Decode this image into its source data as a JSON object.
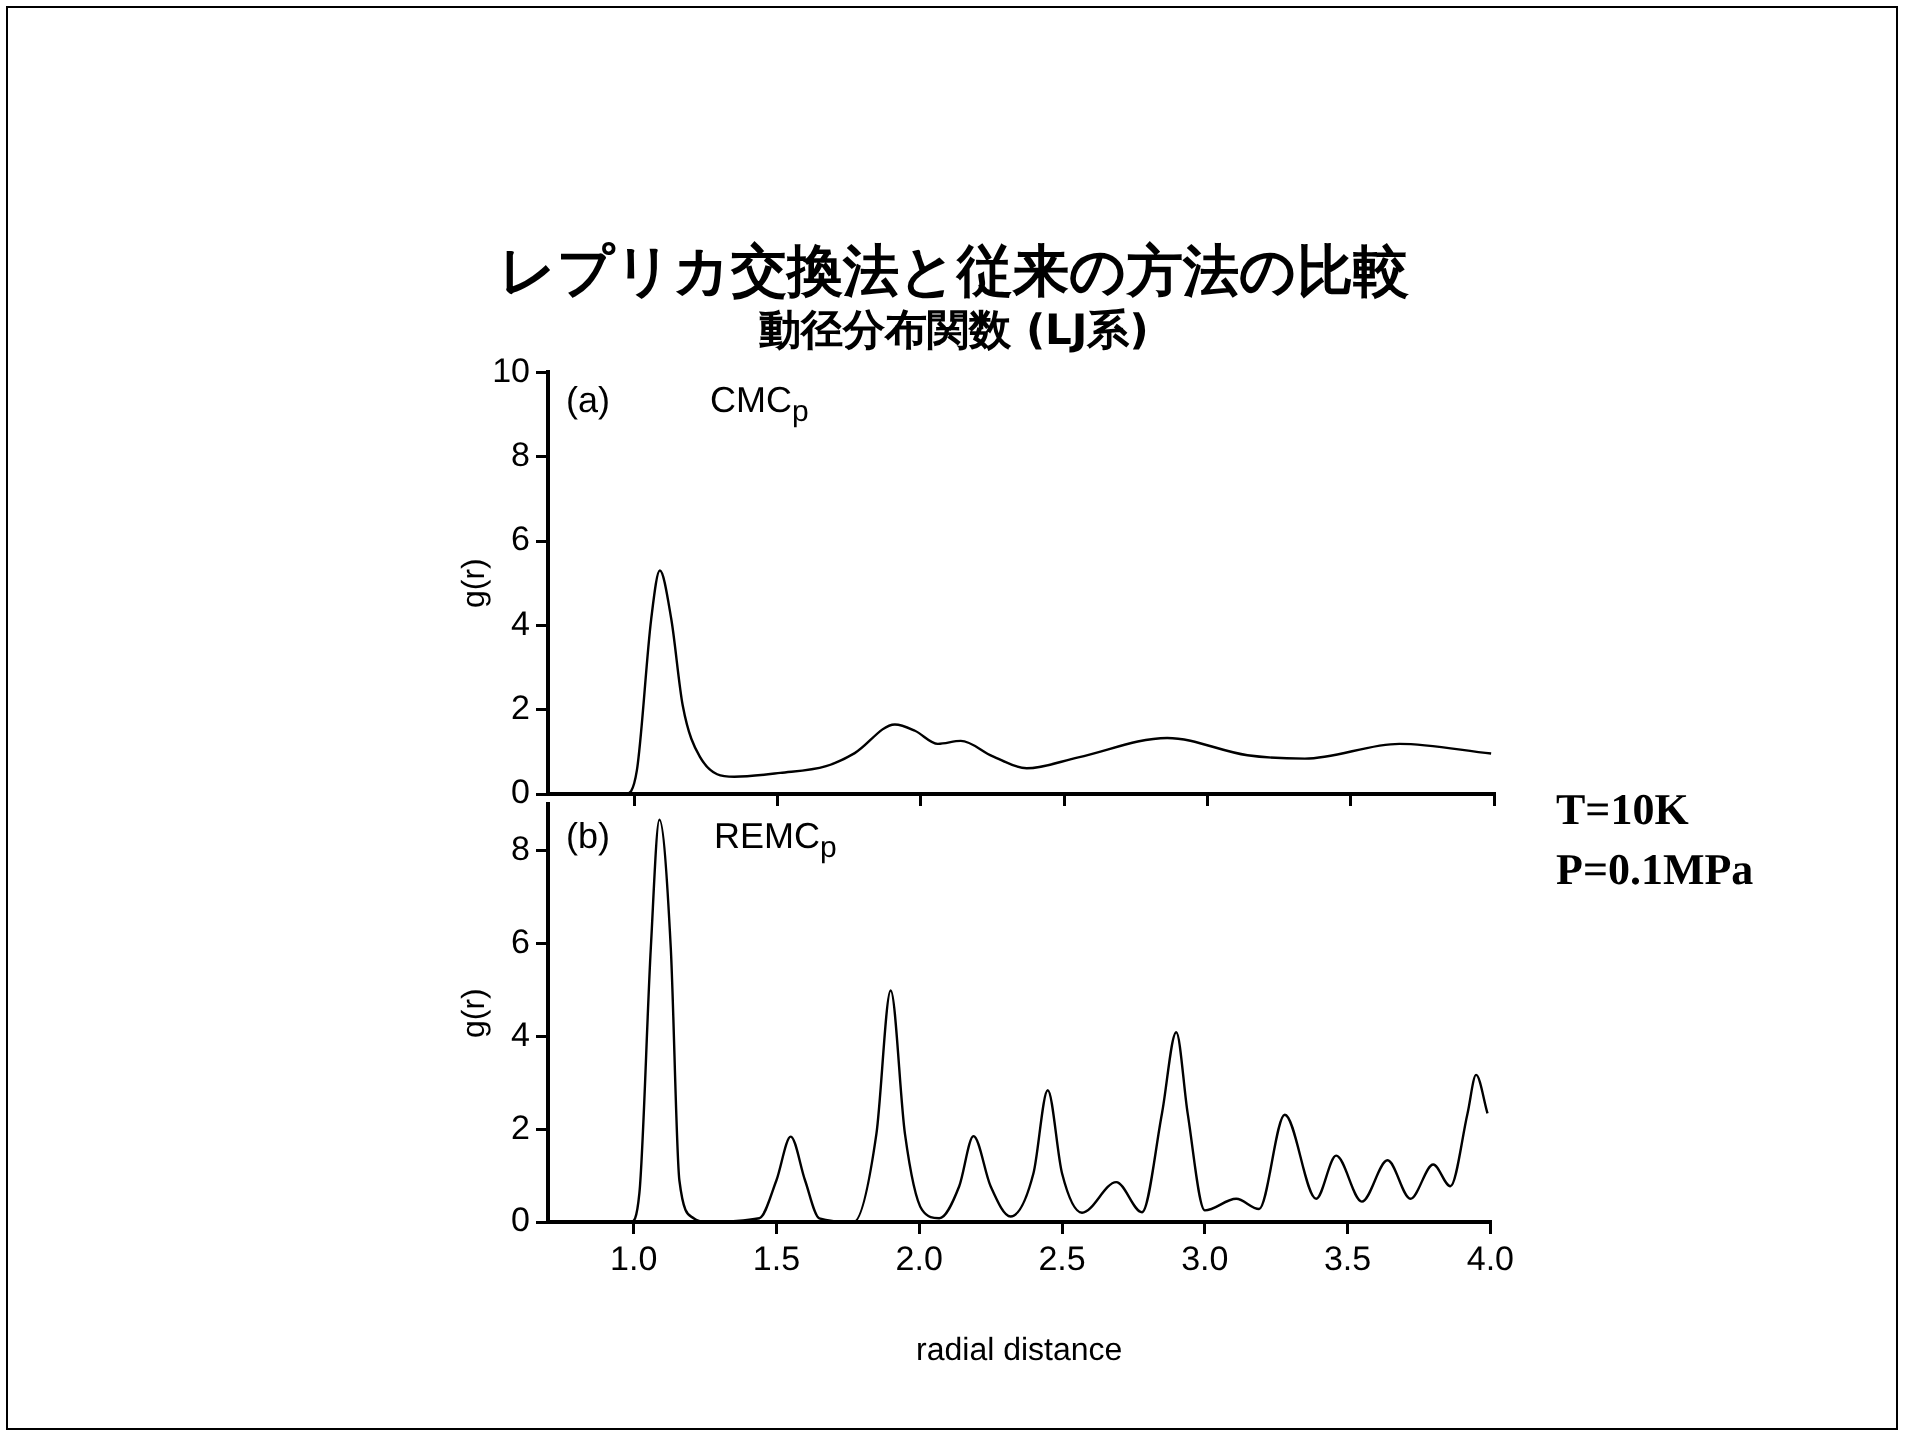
{
  "chart_data": [
    {
      "type": "line",
      "title": "レプリカ交換法と従来の方法の比較",
      "subtitle": "動径分布関数 (LJ系)",
      "ylabel": "g(r)",
      "annotations": [
        "(a)",
        "CMC$_{p}$",
        "T=10K",
        "P=0.1MPa"
      ],
      "x": [
        0.79,
        0.97,
        1.01,
        1.06,
        1.09,
        1.13,
        1.17,
        1.23,
        1.35,
        1.51,
        1.67,
        1.77,
        1.91,
        1.98,
        2.06,
        2.14,
        2.25,
        2.37,
        2.55,
        2.86,
        3.14,
        3.34,
        3.67,
        3.99
      ],
      "series": [
        {
          "color": "#000000",
          "values": [
            0,
            0,
            0.56,
            4.15,
            5.3,
            4.15,
            2.1,
            0.88,
            0.41,
            0.5,
            0.66,
            0.97,
            1.65,
            1.5,
            1.19,
            1.26,
            0.9,
            0.61,
            0.87,
            1.33,
            0.92,
            0.84,
            1.19,
            0.96
          ]
        }
      ],
      "xlim": [
        0.7,
        4.0
      ],
      "xticks": [
        {
          "value": 1,
          "label": null
        },
        {
          "value": 1.5,
          "label": null
        },
        {
          "value": 2,
          "label": null
        },
        {
          "value": 2.5,
          "label": null
        },
        {
          "value": 3,
          "label": null
        },
        {
          "value": 3.5,
          "label": null
        },
        {
          "value": 4,
          "label": null
        }
      ],
      "ylim": [
        0,
        10
      ],
      "yticks": [
        0,
        2,
        4,
        6,
        8,
        10
      ],
      "tick_labels": "y"
    },
    {
      "type": "line",
      "xlabel": "radial distance",
      "ylabel": "g(r)",
      "annotations": [
        "(b)",
        "REMC$_{p}$"
      ],
      "x": [
        0.77,
        0.99,
        1.02,
        1.06,
        1.09,
        1.13,
        1.16,
        1.21,
        1.25,
        1.44,
        1.5,
        1.55,
        1.6,
        1.65,
        1.77,
        1.85,
        1.9,
        1.95,
        2.01,
        2.07,
        2.14,
        2.19,
        2.25,
        2.32,
        2.4,
        2.45,
        2.5,
        2.57,
        2.69,
        2.78,
        2.85,
        2.9,
        2.94,
        3.0,
        3.11,
        3.19,
        3.28,
        3.39,
        3.46,
        3.55,
        3.64,
        3.72,
        3.8,
        3.86,
        3.92,
        3.95,
        3.99
      ],
      "series": [
        {
          "color": "#000000",
          "values": [
            0,
            0,
            0.62,
            5.9,
            8.67,
            5.9,
            0.9,
            0.08,
            0,
            0.08,
            0.9,
            1.84,
            0.9,
            0.08,
            0,
            1.9,
            4.99,
            1.9,
            0.26,
            0.08,
            0.77,
            1.85,
            0.77,
            0.12,
            1.05,
            2.84,
            1.05,
            0.2,
            0.86,
            0.21,
            2.34,
            4.09,
            2.34,
            0.25,
            0.5,
            0.28,
            2.31,
            0.5,
            1.43,
            0.44,
            1.33,
            0.5,
            1.24,
            0.77,
            2.34,
            3.17,
            2.34
          ]
        }
      ],
      "xlim": [
        0.7,
        4.0
      ],
      "xticks": [
        {
          "value": 1,
          "label": "1.0"
        },
        {
          "value": 1.5,
          "label": "1.5"
        },
        {
          "value": 2,
          "label": "2.0"
        },
        {
          "value": 2.5,
          "label": "2.5"
        },
        {
          "value": 3,
          "label": "3.0"
        },
        {
          "value": 3.5,
          "label": "3.5"
        },
        {
          "value": 4,
          "label": "4.0"
        }
      ],
      "ylim": [
        0,
        9
      ],
      "yticks": [
        0,
        2,
        4,
        6,
        8
      ]
    }
  ]
}
